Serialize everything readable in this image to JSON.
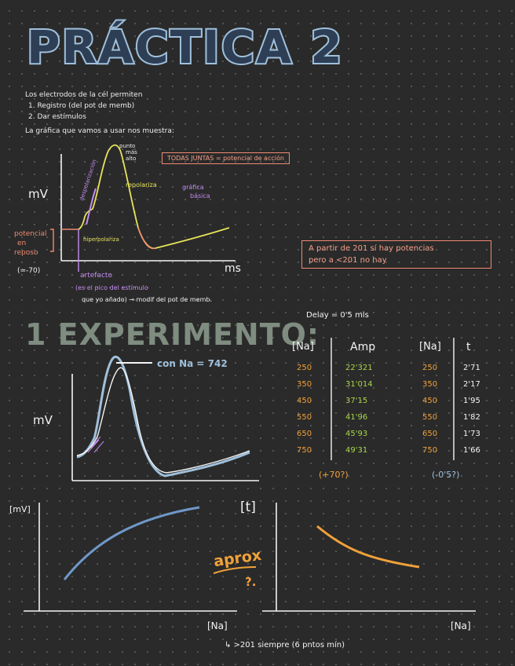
{
  "title": "PRÁCTICA 2",
  "intro": {
    "line1": "Los electrodos de la cél permiten",
    "item1": "1. Registro (del pot de memb)",
    "item2": "2. Dar estímulos",
    "line2": "La gráfica que vamos a usar nos muestra:"
  },
  "diagram1": {
    "peak_label_1": "punto",
    "peak_label_2": "más",
    "peak_label_3": "alto",
    "despolarizacion": "despolarización",
    "repolariza": "repolariza",
    "grafica_basica_1": "gráfica",
    "grafica_basica_2": "básica",
    "hiperpolariza": "hiperpolariza",
    "mv": "mV",
    "ms": "ms",
    "potencial_1": "potencial",
    "potencial_2": "en",
    "potencial_3": "reposo",
    "reposo_value": "(≃-70)",
    "artefacto": "artefacto",
    "artefacto_note": "(es el pico del estímulo",
    "artefacto_note2": "que yo añado) → modif del pot de memb.",
    "todas_juntas": "TODAS JUNTAS = potencial de acción"
  },
  "note_box_1": "A partir de 201 sí hay potencias",
  "note_box_2": "pero a <201 no hay",
  "delay": "Delay = 0'5 mls",
  "experiment_title": "1 EXPERIMENTO:",
  "diagram2": {
    "label": "con Na = 742",
    "mv": "mV"
  },
  "table": {
    "h1": "[Na]",
    "h2": "Amp",
    "h3": "[Na]",
    "h4": "t",
    "na": [
      "250",
      "350",
      "450",
      "550",
      "650",
      "750"
    ],
    "amp": [
      "22'321",
      "31'014",
      "37'15",
      "41'96",
      "45'93",
      "49'31"
    ],
    "na2": [
      "250",
      "350",
      "450",
      "550",
      "650",
      "750"
    ],
    "t": [
      "2'71",
      "2'17",
      "1'95",
      "1'82",
      "1'73",
      "1'66"
    ],
    "note_amp": "(+70?)",
    "note_t": "(-0'5?)"
  },
  "graph_left": {
    "ylabel": "[mV]",
    "xlabel": "[Na]"
  },
  "graph_right": {
    "ylabel": "[t]",
    "xlabel": "[Na]"
  },
  "aprox": "aprox",
  "aprox_q": "?.",
  "footer": "↳ >201 siempre (6 pntos mín)",
  "colors": {
    "blue": "#9fc0dc",
    "orange": "#f0a13a",
    "green": "#a8d64a",
    "salmon": "#f08a72",
    "purple": "#c48cf0",
    "yellow": "#e7e45a"
  }
}
